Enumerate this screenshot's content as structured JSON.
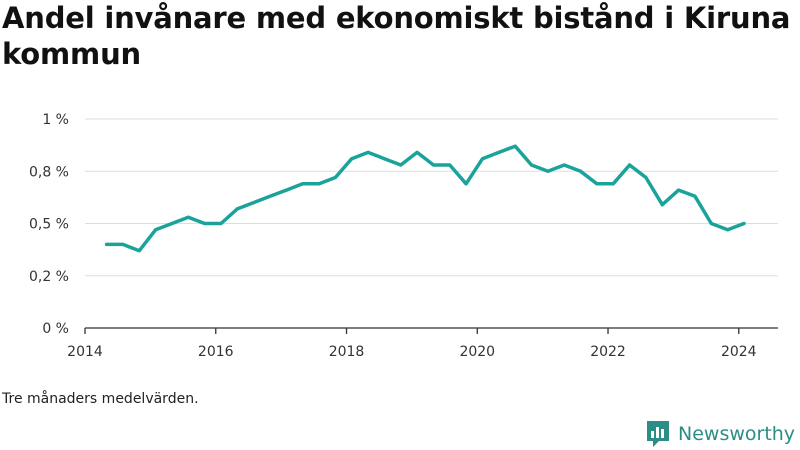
{
  "title": "Andel invånare med ekonomiskt bistånd i Kiruna kommun",
  "note": "Tre månaders medelvärden.",
  "brand": {
    "name": "Newsworthy",
    "icon": "newsworthy-logo-icon",
    "color": "#2a8e85"
  },
  "colors": {
    "line": "#1aa39a",
    "grid": "#dddddd",
    "axis": "#333333"
  },
  "chart_data": {
    "type": "line",
    "title": "Andel invånare med ekonomiskt bistånd i Kiruna kommun",
    "xlabel": "",
    "ylabel": "",
    "ylim": [
      0,
      1
    ],
    "xlim": [
      2014,
      2024.6
    ],
    "y_ticks": [
      {
        "value": 0,
        "label": "0 %"
      },
      {
        "value": 0.25,
        "label": "0,2 %"
      },
      {
        "value": 0.5,
        "label": "0,5 %"
      },
      {
        "value": 0.75,
        "label": "0,8 %"
      },
      {
        "value": 1,
        "label": "1 %"
      }
    ],
    "x_ticks": [
      {
        "value": 2014,
        "label": "2014"
      },
      {
        "value": 2016,
        "label": "2016"
      },
      {
        "value": 2018,
        "label": "2018"
      },
      {
        "value": 2020,
        "label": "2020"
      },
      {
        "value": 2022,
        "label": "2022"
      },
      {
        "value": 2024,
        "label": "2024"
      }
    ],
    "grid": true,
    "series": [
      {
        "x": [
          2014.33,
          2014.58,
          2014.83,
          2015.08,
          2015.33,
          2015.58,
          2015.83,
          2016.08,
          2016.33,
          2016.58,
          2016.83,
          2017.08,
          2017.33,
          2017.58,
          2017.83,
          2018.08,
          2018.33,
          2018.58,
          2018.83,
          2019.08,
          2019.33,
          2019.58,
          2019.83,
          2020.08,
          2020.33,
          2020.58,
          2020.83,
          2021.08,
          2021.33,
          2021.58,
          2021.83,
          2022.08,
          2022.33,
          2022.58,
          2022.83,
          2023.08,
          2023.33,
          2023.58,
          2023.83,
          2024.08
        ],
        "y": [
          0.4,
          0.4,
          0.37,
          0.47,
          0.5,
          0.53,
          0.5,
          0.5,
          0.57,
          0.6,
          0.63,
          0.66,
          0.69,
          0.69,
          0.72,
          0.81,
          0.84,
          0.81,
          0.78,
          0.84,
          0.78,
          0.78,
          0.69,
          0.81,
          0.84,
          0.87,
          0.78,
          0.75,
          0.78,
          0.75,
          0.69,
          0.69,
          0.78,
          0.72,
          0.59,
          0.66,
          0.63,
          0.5,
          0.47,
          0.5
        ]
      }
    ]
  }
}
